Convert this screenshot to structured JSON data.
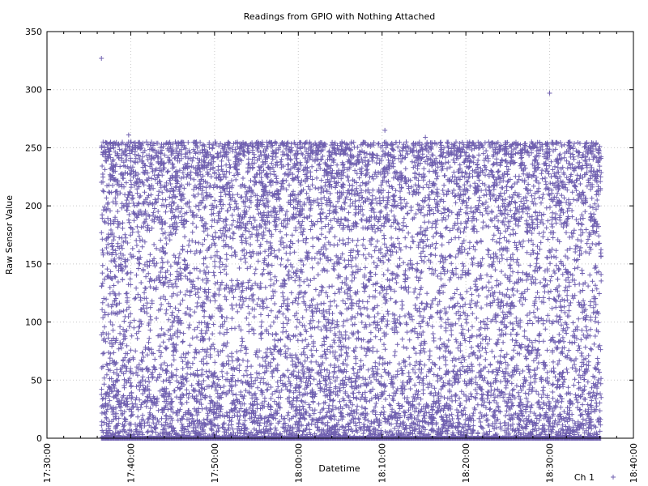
{
  "chart_data": {
    "type": "scatter",
    "title": "Readings from GPIO with Nothing Attached",
    "xlabel": "Datetime",
    "ylabel": "Raw Sensor Value",
    "xlim": [
      "17:30:00",
      "18:40:00"
    ],
    "ylim": [
      0,
      350
    ],
    "x_ticks": [
      "17:30:00",
      "17:40:00",
      "17:50:00",
      "18:00:00",
      "18:10:00",
      "18:20:00",
      "18:30:00",
      "18:40:00"
    ],
    "y_ticks": [
      0,
      50,
      100,
      150,
      200,
      250,
      300,
      350
    ],
    "grid": true,
    "legend_position": "bottom-right",
    "series": [
      {
        "name": "Ch 1",
        "marker": "plus",
        "color": "#7060b0",
        "x_range": [
          "17:36:30",
          "18:36:10"
        ],
        "distribution": "dense noise clustered near 0-60 and 180-255, sparser 60-180",
        "outliers": [
          {
            "x": "17:36:30",
            "y": 327
          },
          {
            "x": "18:10:20",
            "y": 265
          },
          {
            "x": "18:30:00",
            "y": 297
          },
          {
            "x": "17:39:45",
            "y": 261
          },
          {
            "x": "18:15:10",
            "y": 259
          }
        ]
      }
    ]
  }
}
